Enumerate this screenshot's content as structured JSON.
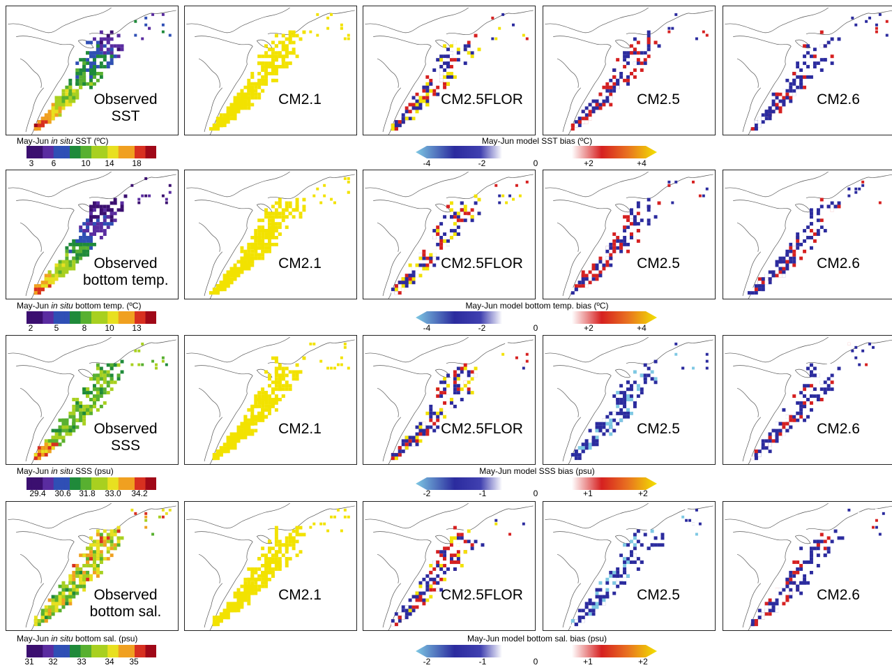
{
  "rows": [
    {
      "observed_label": [
        "Observed",
        "SST"
      ],
      "model_labels": [
        "CM2.1",
        "CM2.5FLOR",
        "CM2.5",
        "CM2.6"
      ],
      "obs_caption": {
        "pre": "May-Jun ",
        "em": "in situ",
        "post": " SST (ºC)"
      },
      "obs_ticks": [
        "3",
        "6",
        "10",
        "14",
        "18"
      ],
      "bias_caption": "May-Jun model SST bias (ºC)",
      "bias_ticks": [
        "-4",
        "-2",
        "0",
        "+2",
        "+4"
      ]
    },
    {
      "observed_label": [
        "Observed",
        "bottom temp."
      ],
      "model_labels": [
        "CM2.1",
        "CM2.5FLOR",
        "CM2.5",
        "CM2.6"
      ],
      "obs_caption": {
        "pre": "May-Jun ",
        "em": "in situ",
        "post": " bottom temp. (ºC)"
      },
      "obs_ticks": [
        "2",
        "5",
        "8",
        "10",
        "13"
      ],
      "bias_caption": "May-Jun model bottom temp. bias (ºC)",
      "bias_ticks": [
        "-4",
        "-2",
        "0",
        "+2",
        "+4"
      ]
    },
    {
      "observed_label": [
        "Observed",
        "SSS"
      ],
      "model_labels": [
        "CM2.1",
        "CM2.5FLOR",
        "CM2.5",
        "CM2.6"
      ],
      "obs_caption": {
        "pre": "May-Jun ",
        "em": "in situ",
        "post": " SSS (psu)"
      },
      "obs_ticks": [
        "29.4",
        "30.6",
        "31.8",
        "33.0",
        "34.2"
      ],
      "bias_caption": "May-Jun model SSS bias (psu)",
      "bias_ticks": [
        "-2",
        "-1",
        "0",
        "+1",
        "+2"
      ]
    },
    {
      "observed_label": [
        "Observed",
        "bottom sal."
      ],
      "model_labels": [
        "CM2.1",
        "CM2.5FLOR",
        "CM2.5",
        "CM2.6"
      ],
      "obs_caption": {
        "pre": "May-Jun ",
        "em": "in situ",
        "post": " bottom sal. (psu)"
      },
      "obs_ticks": [
        "31",
        "32",
        "33",
        "34",
        "35"
      ],
      "bias_caption": "May-Jun model bottom sal. bias (psu)",
      "bias_ticks": [
        "-2",
        "-1",
        "0",
        "+1",
        "+2"
      ]
    }
  ],
  "colors": {
    "observed_scale": [
      "#3b0f70",
      "#5a2ca0",
      "#2f4fb5",
      "#1f8a3a",
      "#58b030",
      "#a8d020",
      "#e8e020",
      "#f0a020",
      "#d83020",
      "#a00818"
    ],
    "bias_scale": [
      "#7ec8e3",
      "#2b2b9e",
      "#ffffff",
      "#d62020",
      "#f2e200"
    ]
  }
}
